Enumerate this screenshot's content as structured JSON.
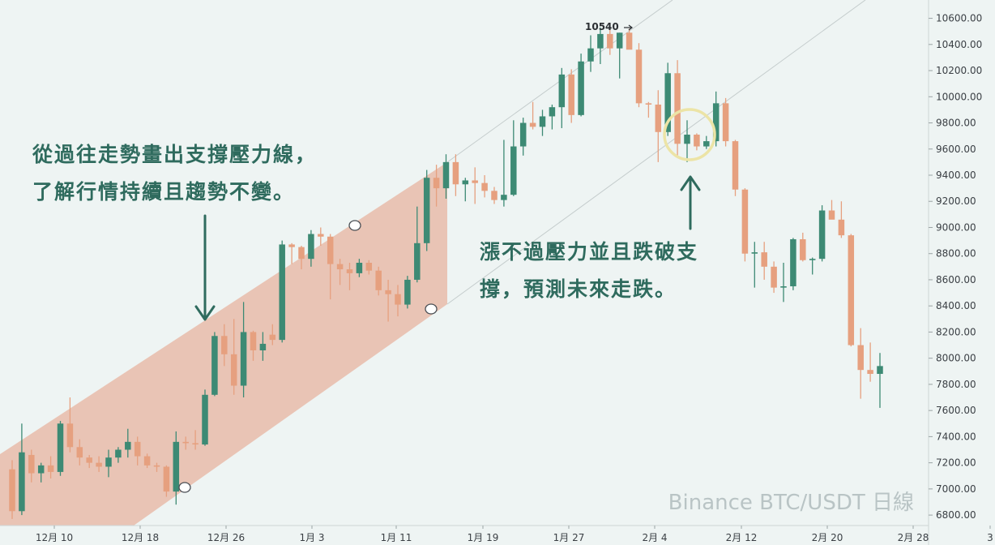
{
  "chart_data": {
    "type": "candlestick",
    "title": "Binance BTC/USDT 日線",
    "x_tick_labels": [
      "12月 10",
      "12月 18",
      "12月 26",
      "1月 3",
      "1月 11",
      "1月 19",
      "1月 27",
      "2月 4",
      "2月 12",
      "2月 20",
      "2月 28",
      "3"
    ],
    "y_ticks": [
      6800,
      7000,
      7200,
      7400,
      7600,
      7800,
      8000,
      8200,
      8400,
      8600,
      8800,
      9000,
      9200,
      9400,
      9600,
      9800,
      10000,
      10200,
      10400,
      10600
    ],
    "y_tick_labels": [
      "6800.00",
      "7000.00",
      "7200.00",
      "7400.00",
      "7600.00",
      "7800.00",
      "8000.00",
      "8200.00",
      "8400.00",
      "8600.00",
      "8800.00",
      "9000.00",
      "9200.00",
      "9400.00",
      "9600.00",
      "9800.00",
      "10000.00",
      "10200.00",
      "10400.00",
      "10600.00"
    ],
    "ylim": [
      6720,
      10740
    ],
    "peak_label": "10540",
    "candles": [
      {
        "o": 7150,
        "h": 7220,
        "l": 6770,
        "c": 6830
      },
      {
        "o": 6830,
        "h": 7500,
        "l": 6800,
        "c": 7280
      },
      {
        "o": 7260,
        "h": 7300,
        "l": 7050,
        "c": 7120
      },
      {
        "o": 7120,
        "h": 7200,
        "l": 7050,
        "c": 7180
      },
      {
        "o": 7180,
        "h": 7250,
        "l": 7080,
        "c": 7130
      },
      {
        "o": 7130,
        "h": 7520,
        "l": 7100,
        "c": 7500
      },
      {
        "o": 7500,
        "h": 7700,
        "l": 7280,
        "c": 7320
      },
      {
        "o": 7320,
        "h": 7380,
        "l": 7180,
        "c": 7240
      },
      {
        "o": 7240,
        "h": 7260,
        "l": 7160,
        "c": 7200
      },
      {
        "o": 7200,
        "h": 7250,
        "l": 7130,
        "c": 7170
      },
      {
        "o": 7170,
        "h": 7300,
        "l": 7090,
        "c": 7240
      },
      {
        "o": 7240,
        "h": 7320,
        "l": 7200,
        "c": 7300
      },
      {
        "o": 7300,
        "h": 7460,
        "l": 7240,
        "c": 7360
      },
      {
        "o": 7360,
        "h": 7400,
        "l": 7180,
        "c": 7250
      },
      {
        "o": 7250,
        "h": 7270,
        "l": 7160,
        "c": 7180
      },
      {
        "o": 7180,
        "h": 7200,
        "l": 7130,
        "c": 7170
      },
      {
        "o": 7170,
        "h": 7180,
        "l": 6940,
        "c": 6980
      },
      {
        "o": 6980,
        "h": 7440,
        "l": 6880,
        "c": 7360
      },
      {
        "o": 7360,
        "h": 7400,
        "l": 7300,
        "c": 7350
      },
      {
        "o": 7350,
        "h": 7450,
        "l": 7300,
        "c": 7340
      },
      {
        "o": 7340,
        "h": 7760,
        "l": 7330,
        "c": 7720
      },
      {
        "o": 7720,
        "h": 8200,
        "l": 7710,
        "c": 8170
      },
      {
        "o": 8170,
        "h": 8260,
        "l": 7940,
        "c": 8030
      },
      {
        "o": 8030,
        "h": 8300,
        "l": 7720,
        "c": 7790
      },
      {
        "o": 7790,
        "h": 8430,
        "l": 7700,
        "c": 8200
      },
      {
        "o": 8200,
        "h": 8210,
        "l": 7980,
        "c": 8060
      },
      {
        "o": 8060,
        "h": 8200,
        "l": 7980,
        "c": 8110
      },
      {
        "o": 8180,
        "h": 8260,
        "l": 8100,
        "c": 8140
      },
      {
        "o": 8140,
        "h": 8900,
        "l": 8120,
        "c": 8870
      },
      {
        "o": 8870,
        "h": 8880,
        "l": 8720,
        "c": 8850
      },
      {
        "o": 8850,
        "h": 8860,
        "l": 8680,
        "c": 8760
      },
      {
        "o": 8760,
        "h": 8980,
        "l": 8700,
        "c": 8950
      },
      {
        "o": 8950,
        "h": 9000,
        "l": 8860,
        "c": 8930
      },
      {
        "o": 8930,
        "h": 8950,
        "l": 8450,
        "c": 8720
      },
      {
        "o": 8720,
        "h": 8760,
        "l": 8560,
        "c": 8680
      },
      {
        "o": 8680,
        "h": 8730,
        "l": 8520,
        "c": 8650
      },
      {
        "o": 8650,
        "h": 8760,
        "l": 8620,
        "c": 8730
      },
      {
        "o": 8730,
        "h": 8750,
        "l": 8640,
        "c": 8670
      },
      {
        "o": 8670,
        "h": 8700,
        "l": 8480,
        "c": 8520
      },
      {
        "o": 8520,
        "h": 8600,
        "l": 8280,
        "c": 8490
      },
      {
        "o": 8490,
        "h": 8560,
        "l": 8320,
        "c": 8410
      },
      {
        "o": 8410,
        "h": 8630,
        "l": 8380,
        "c": 8600
      },
      {
        "o": 8600,
        "h": 9160,
        "l": 8580,
        "c": 8880
      },
      {
        "o": 8880,
        "h": 9440,
        "l": 8820,
        "c": 9380
      },
      {
        "o": 9380,
        "h": 9480,
        "l": 9160,
        "c": 9300
      },
      {
        "o": 9300,
        "h": 9560,
        "l": 9220,
        "c": 9500
      },
      {
        "o": 9500,
        "h": 9560,
        "l": 9240,
        "c": 9330
      },
      {
        "o": 9330,
        "h": 9380,
        "l": 9200,
        "c": 9360
      },
      {
        "o": 9360,
        "h": 9460,
        "l": 9180,
        "c": 9340
      },
      {
        "o": 9340,
        "h": 9400,
        "l": 9230,
        "c": 9280
      },
      {
        "o": 9280,
        "h": 9310,
        "l": 9180,
        "c": 9210
      },
      {
        "o": 9210,
        "h": 9670,
        "l": 9160,
        "c": 9250
      },
      {
        "o": 9250,
        "h": 9820,
        "l": 9240,
        "c": 9620
      },
      {
        "o": 9620,
        "h": 9840,
        "l": 9550,
        "c": 9800
      },
      {
        "o": 9800,
        "h": 9960,
        "l": 9750,
        "c": 9770
      },
      {
        "o": 9770,
        "h": 9900,
        "l": 9700,
        "c": 9850
      },
      {
        "o": 9850,
        "h": 9940,
        "l": 9750,
        "c": 9920
      },
      {
        "o": 9920,
        "h": 10220,
        "l": 9760,
        "c": 10170
      },
      {
        "o": 10170,
        "h": 10210,
        "l": 9800,
        "c": 9860
      },
      {
        "o": 9860,
        "h": 10330,
        "l": 9850,
        "c": 10270
      },
      {
        "o": 10270,
        "h": 10470,
        "l": 10190,
        "c": 10370
      },
      {
        "o": 10370,
        "h": 10530,
        "l": 10250,
        "c": 10480
      },
      {
        "o": 10480,
        "h": 10540,
        "l": 10320,
        "c": 10370
      },
      {
        "o": 10370,
        "h": 10490,
        "l": 10140,
        "c": 10490
      },
      {
        "o": 10490,
        "h": 10520,
        "l": 10370,
        "c": 10360
      },
      {
        "o": 10360,
        "h": 10410,
        "l": 9920,
        "c": 9950
      },
      {
        "o": 9950,
        "h": 9960,
        "l": 9840,
        "c": 9940
      },
      {
        "o": 9940,
        "h": 10050,
        "l": 9500,
        "c": 9730
      },
      {
        "o": 9730,
        "h": 10260,
        "l": 9700,
        "c": 10180
      },
      {
        "o": 10180,
        "h": 10280,
        "l": 9540,
        "c": 9640
      },
      {
        "o": 9640,
        "h": 9820,
        "l": 9500,
        "c": 9710
      },
      {
        "o": 9710,
        "h": 9720,
        "l": 9590,
        "c": 9620
      },
      {
        "o": 9620,
        "h": 9700,
        "l": 9600,
        "c": 9660
      },
      {
        "o": 9660,
        "h": 10040,
        "l": 9620,
        "c": 9950
      },
      {
        "o": 9950,
        "h": 9990,
        "l": 9620,
        "c": 9660
      },
      {
        "o": 9660,
        "h": 9670,
        "l": 9240,
        "c": 9290
      },
      {
        "o": 9290,
        "h": 9300,
        "l": 8740,
        "c": 8800
      },
      {
        "o": 8800,
        "h": 8890,
        "l": 8540,
        "c": 8810
      },
      {
        "o": 8810,
        "h": 8890,
        "l": 8600,
        "c": 8700
      },
      {
        "o": 8700,
        "h": 8740,
        "l": 8500,
        "c": 8540
      },
      {
        "o": 8540,
        "h": 8730,
        "l": 8430,
        "c": 8550
      },
      {
        "o": 8550,
        "h": 8920,
        "l": 8520,
        "c": 8910
      },
      {
        "o": 8910,
        "h": 8960,
        "l": 8740,
        "c": 8750
      },
      {
        "o": 8750,
        "h": 8770,
        "l": 8640,
        "c": 8760
      },
      {
        "o": 8760,
        "h": 9170,
        "l": 8740,
        "c": 9130
      },
      {
        "o": 9130,
        "h": 9210,
        "l": 9080,
        "c": 9060
      },
      {
        "o": 9060,
        "h": 9200,
        "l": 8920,
        "c": 8940
      },
      {
        "o": 8940,
        "h": 8950,
        "l": 8090,
        "c": 8100
      },
      {
        "o": 8100,
        "h": 8230,
        "l": 7690,
        "c": 7910
      },
      {
        "o": 7910,
        "h": 8120,
        "l": 7820,
        "c": 7880
      },
      {
        "o": 7880,
        "h": 8040,
        "l": 7620,
        "c": 7940
      }
    ]
  },
  "annotations": {
    "left": "從過往走勢畫出支撐壓力線，\n了解行情持續且趨勢不變。",
    "right": "漲不過壓力並且跌破支\n撐，預測未來走跌。"
  },
  "watermark": "Binance BTC/USDT 日線",
  "colors": {
    "up": "#3d8a74",
    "down": "#e6a07f",
    "channel_fill": "#e8b29d",
    "annotation": "#2f6b5e",
    "highlight_circle": "#ece4a6"
  }
}
